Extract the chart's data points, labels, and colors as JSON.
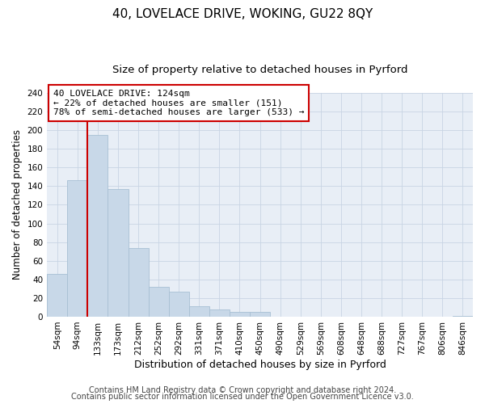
{
  "title": "40, LOVELACE DRIVE, WOKING, GU22 8QY",
  "subtitle": "Size of property relative to detached houses in Pyrford",
  "xlabel": "Distribution of detached houses by size in Pyrford",
  "ylabel": "Number of detached properties",
  "bar_labels": [
    "54sqm",
    "94sqm",
    "133sqm",
    "173sqm",
    "212sqm",
    "252sqm",
    "292sqm",
    "331sqm",
    "371sqm",
    "410sqm",
    "450sqm",
    "490sqm",
    "529sqm",
    "569sqm",
    "608sqm",
    "648sqm",
    "688sqm",
    "727sqm",
    "767sqm",
    "806sqm",
    "846sqm"
  ],
  "bar_values": [
    46,
    146,
    195,
    137,
    74,
    32,
    27,
    11,
    8,
    5,
    5,
    0,
    0,
    0,
    0,
    0,
    0,
    0,
    0,
    0,
    1
  ],
  "bar_color": "#c8d8e8",
  "bar_edge_color": "#a8c0d4",
  "vline_color": "#cc0000",
  "annotation_line1": "40 LOVELACE DRIVE: 124sqm",
  "annotation_line2": "← 22% of detached houses are smaller (151)",
  "annotation_line3": "78% of semi-detached houses are larger (533) →",
  "annotation_box_facecolor": "#ffffff",
  "annotation_box_edgecolor": "#cc0000",
  "bg_color": "#e8eef6",
  "ylim": [
    0,
    240
  ],
  "yticks": [
    0,
    20,
    40,
    60,
    80,
    100,
    120,
    140,
    160,
    180,
    200,
    220,
    240
  ],
  "grid_color": "#c8d4e4",
  "footer1": "Contains HM Land Registry data © Crown copyright and database right 2024.",
  "footer2": "Contains public sector information licensed under the Open Government Licence v3.0.",
  "title_fontsize": 11,
  "subtitle_fontsize": 9.5,
  "xlabel_fontsize": 9,
  "ylabel_fontsize": 8.5,
  "tick_fontsize": 7.5,
  "annot_fontsize": 8,
  "footer_fontsize": 7
}
